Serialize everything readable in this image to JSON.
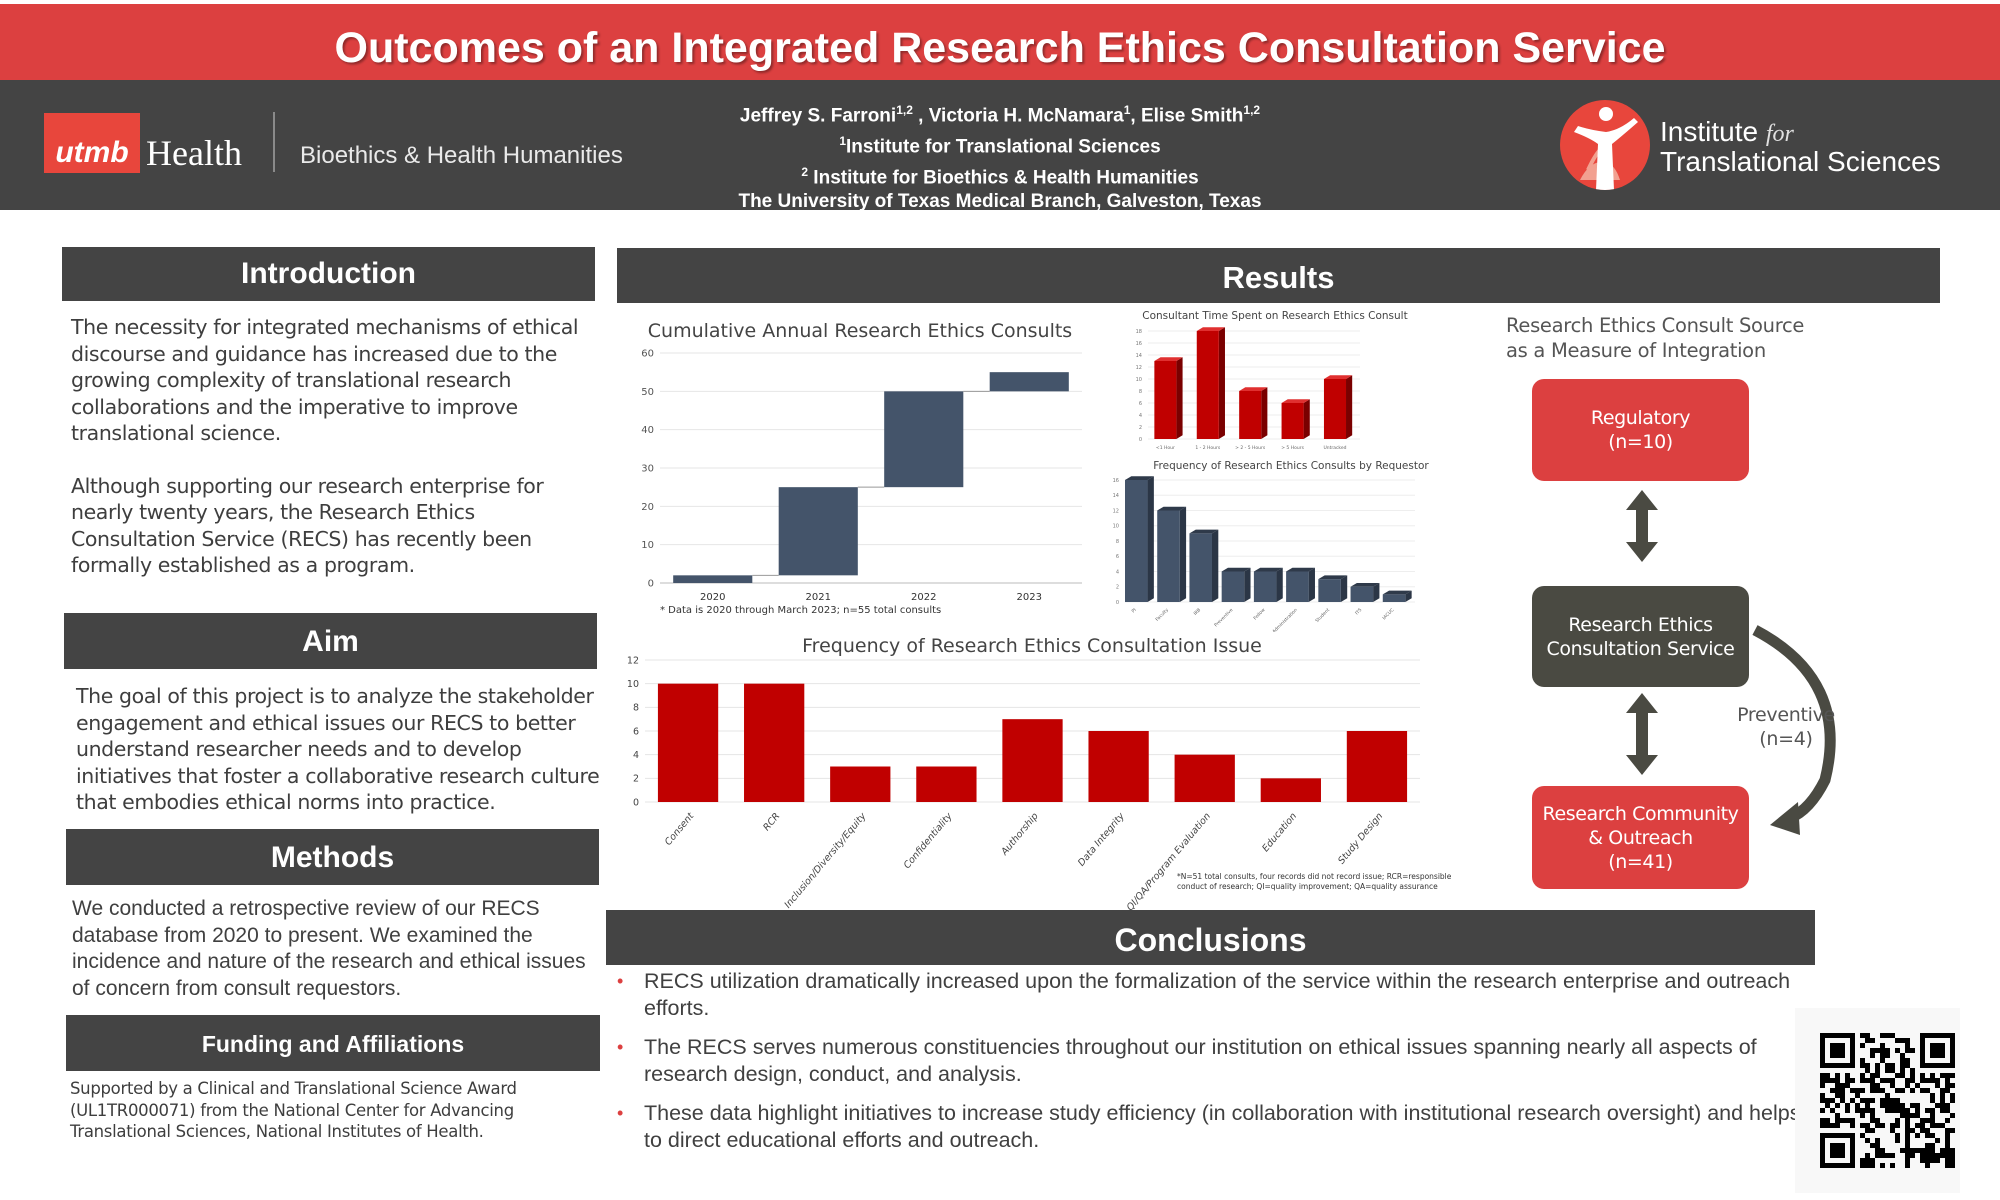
{
  "header": {
    "title": "Outcomes of an Integrated Research Ethics Consultation Service",
    "utmb_logo_mark": "utmb",
    "utmb_logo_word": "Health",
    "department": "Bioethics & Health Humanities",
    "authors": [
      {
        "name": "Jeffrey S. Farroni",
        "aff": "1,2",
        "sep": " , "
      },
      {
        "name": "Victoria H. McNamara",
        "aff": "1",
        "sep": ", "
      },
      {
        "name": "Elise Smith",
        "aff": "1,2",
        "sep": ""
      }
    ],
    "affiliation_1_mark": "1",
    "affiliation_1": "Institute for Translational Sciences",
    "affiliation_2_mark": "2",
    "affiliation_2": " Institute for Bioethics & Health Humanities",
    "institution": "The University of Texas Medical Branch, Galveston, Texas",
    "its_logo_line1": "Institute",
    "its_logo_for": "for",
    "its_logo_line2": "Translational Sciences"
  },
  "introduction": {
    "heading": "Introduction",
    "paragraphs": [
      "The necessity for integrated mechanisms of ethical discourse and guidance has increased due to the growing complexity of translational research collaborations and the imperative to improve translational science.",
      "Although supporting our research enterprise for nearly twenty years, the Research Ethics Consultation Service (RECS) has recently been formally established as a program."
    ]
  },
  "aim": {
    "heading": "Aim",
    "text": "The goal of this project is to analyze the stakeholder engagement and ethical issues our RECS to better understand researcher needs and to develop initiatives that foster a collaborative research culture that embodies ethical norms into practice."
  },
  "methods": {
    "heading": "Methods",
    "text": "We conducted a retrospective review of our RECS database from 2020 to present. We examined the incidence and nature of the research and ethical issues of concern from consult requestors."
  },
  "funding": {
    "heading": "Funding and Affiliations",
    "text": "Supported by a Clinical and Translational Science Award (UL1TR000071) from the National Center for Advancing Translational Sciences, National Institutes of Health."
  },
  "results": {
    "heading": "Results",
    "flow": {
      "title_line1": "Research Ethics Consult Source",
      "title_line2": "as a Measure of Integration",
      "regulatory_label": "Regulatory",
      "regulatory_n": "(n=10)",
      "recs_line1": "Research Ethics",
      "recs_line2": "Consultation Service",
      "community_line1": "Research Community",
      "community_line2": "& Outreach",
      "community_n": "(n=41)",
      "preventive_label": "Preventive",
      "preventive_n": "(n=4)"
    }
  },
  "conclusions": {
    "heading": "Conclusions",
    "bullets": [
      "RECS utilization dramatically increased upon the formalization of the service within the research enterprise and outreach efforts.",
      "The RECS serves numerous constituencies throughout our institution on ethical issues spanning nearly all aspects of research design, conduct, and analysis.",
      "These data highlight initiatives to increase study efficiency (in collaboration with institutional research oversight) and helps to direct educational efforts and outreach."
    ]
  },
  "colors": {
    "brand_red": "#dc4040",
    "header_gray": "#444444",
    "bar_red": "#c00000",
    "bar_navy": "#44546a"
  },
  "chart_data": [
    {
      "id": "cumulative",
      "type": "bar",
      "subtype": "waterfall",
      "title": "Cumulative Annual Research Ethics Consults",
      "categories": [
        "2020",
        "2021",
        "2022",
        "2023"
      ],
      "values": [
        2,
        23,
        25,
        5
      ],
      "cumulative": [
        2,
        25,
        50,
        55
      ],
      "ylim": [
        0,
        60
      ],
      "yticks": [
        0,
        10,
        20,
        30,
        40,
        50,
        60
      ],
      "xlabel": "",
      "ylabel": "",
      "grid": true,
      "footnote": "* Data is 2020 through March 2023; n=55 total consults"
    },
    {
      "id": "time",
      "type": "bar",
      "style": "3d",
      "title": "Consultant Time Spent on Research Ethics Consult",
      "categories": [
        "<1 Hour",
        "1 - 2 Hours",
        "> 2 - 5 Hours",
        "> 5 Hours",
        "Untracked"
      ],
      "values": [
        13,
        18,
        8,
        6,
        10
      ],
      "ylim": [
        0,
        18
      ],
      "yticks": [
        0,
        2,
        4,
        6,
        8,
        10,
        12,
        14,
        16,
        18
      ],
      "grid": true
    },
    {
      "id": "requestor",
      "type": "bar",
      "style": "3d",
      "title": "Frequency of Research Ethics Consults by Requestor",
      "categories": [
        "PI",
        "Faculty",
        "IRB",
        "Preventive",
        "Fellow",
        "Research Administration",
        "Student",
        "ITS",
        "IACUC"
      ],
      "values": [
        16,
        12,
        9,
        4,
        4,
        4,
        3,
        2,
        1
      ],
      "ylim": [
        0,
        16
      ],
      "yticks": [
        0,
        2,
        4,
        6,
        8,
        10,
        12,
        14,
        16
      ],
      "grid": true
    },
    {
      "id": "issue",
      "type": "bar",
      "title": "Frequency of Research Ethics Consultation Issue",
      "categories": [
        "Consent",
        "RCR",
        "Inclusion/Diversity/Equity",
        "Confidentiality",
        "Authorship",
        "Data Integrity",
        "QI/QA/Program Evaluation",
        "Education",
        "Study Design"
      ],
      "values": [
        10,
        10,
        3,
        3,
        7,
        6,
        4,
        2,
        6
      ],
      "ylim": [
        0,
        12
      ],
      "yticks": [
        0,
        2,
        4,
        6,
        8,
        10,
        12
      ],
      "grid": true,
      "footnote_line1": "*N=51 total consults, four records did not record issue; RCR=responsible",
      "footnote_line2": "conduct of research; QI=quality improvement; QA=quality assurance"
    }
  ]
}
